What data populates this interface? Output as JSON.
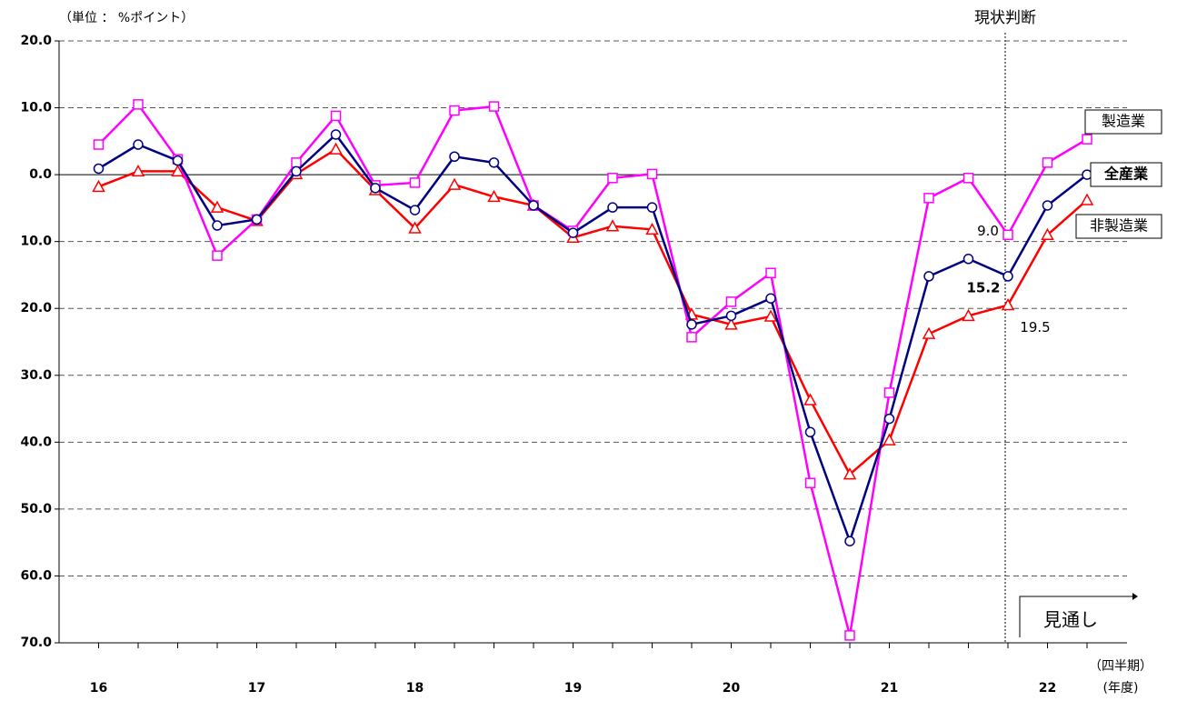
{
  "chart_data": {
    "type": "line",
    "unit_label": "（単位 ： %ポイント）",
    "annotations": {
      "current": "現状判断",
      "outlook": "見通し",
      "quarter": "（四半期）",
      "fiscal_year": "(年度)"
    },
    "categories": [
      "16",
      null,
      null,
      null,
      "17",
      null,
      null,
      null,
      "18",
      null,
      null,
      null,
      "19",
      null,
      null,
      null,
      "20",
      null,
      null,
      null,
      "21",
      null,
      null,
      null,
      "22",
      null
    ],
    "series": [
      {
        "name": "全産業",
        "color": "#000080",
        "marker": "circle",
        "values": [
          0.9,
          4.5,
          2.1,
          -7.6,
          -6.7,
          0.5,
          6.0,
          -2.0,
          -5.3,
          2.7,
          1.8,
          -4.6,
          -8.7,
          -4.9,
          -4.9,
          -22.4,
          -21.1,
          -18.5,
          -38.5,
          -54.8,
          -36.5,
          -15.2,
          -12.6,
          -15.2,
          -4.6,
          0.0
        ],
        "value_labels": [
          null,
          null,
          null,
          null,
          null,
          null,
          null,
          null,
          null,
          null,
          null,
          null,
          null,
          null,
          null,
          null,
          null,
          null,
          null,
          null,
          null,
          null,
          null,
          "15.2",
          null,
          null
        ]
      },
      {
        "name": "製造業",
        "color": "#ff00ff",
        "marker": "square",
        "values": [
          4.5,
          10.5,
          2.3,
          -12.1,
          -6.7,
          1.8,
          8.8,
          -1.6,
          -1.2,
          9.6,
          10.2,
          -4.6,
          -8.4,
          -0.5,
          0.1,
          -24.3,
          -19.0,
          -14.7,
          -46.1,
          -68.9,
          -32.6,
          -3.5,
          -0.5,
          -9.0,
          1.8,
          5.3
        ],
        "value_labels": [
          null,
          null,
          null,
          null,
          null,
          null,
          null,
          null,
          null,
          null,
          null,
          null,
          null,
          null,
          null,
          null,
          null,
          null,
          null,
          null,
          null,
          null,
          null,
          "9.0",
          null,
          null
        ]
      },
      {
        "name": "非製造業",
        "color": "#ff0000",
        "marker": "triangle",
        "values": [
          -1.8,
          0.5,
          0.5,
          -4.9,
          -6.9,
          0.1,
          3.8,
          -2.3,
          -8.0,
          -1.5,
          -3.3,
          -4.6,
          -9.4,
          -7.7,
          -8.2,
          -20.9,
          -22.4,
          -21.2,
          -33.7,
          -44.8,
          -39.7,
          -23.8,
          -21.1,
          -19.5,
          -9.0,
          -3.8
        ],
        "value_labels": [
          null,
          null,
          null,
          null,
          null,
          null,
          null,
          null,
          null,
          null,
          null,
          null,
          null,
          null,
          null,
          null,
          null,
          null,
          null,
          null,
          null,
          null,
          null,
          "19.5",
          null,
          null
        ]
      }
    ],
    "ylim": [
      -70,
      20
    ],
    "yticks": [
      {
        "value": 20,
        "label": "20.0"
      },
      {
        "value": 10,
        "label": "10.0"
      },
      {
        "value": 0,
        "label": "0.0"
      },
      {
        "value": -10,
        "label": "10.0"
      },
      {
        "value": -20,
        "label": "20.0"
      },
      {
        "value": -30,
        "label": "30.0"
      },
      {
        "value": -40,
        "label": "40.0"
      },
      {
        "value": -50,
        "label": "50.0"
      },
      {
        "value": -60,
        "label": "60.0"
      },
      {
        "value": -70,
        "label": "70.0"
      }
    ],
    "grid": true
  }
}
